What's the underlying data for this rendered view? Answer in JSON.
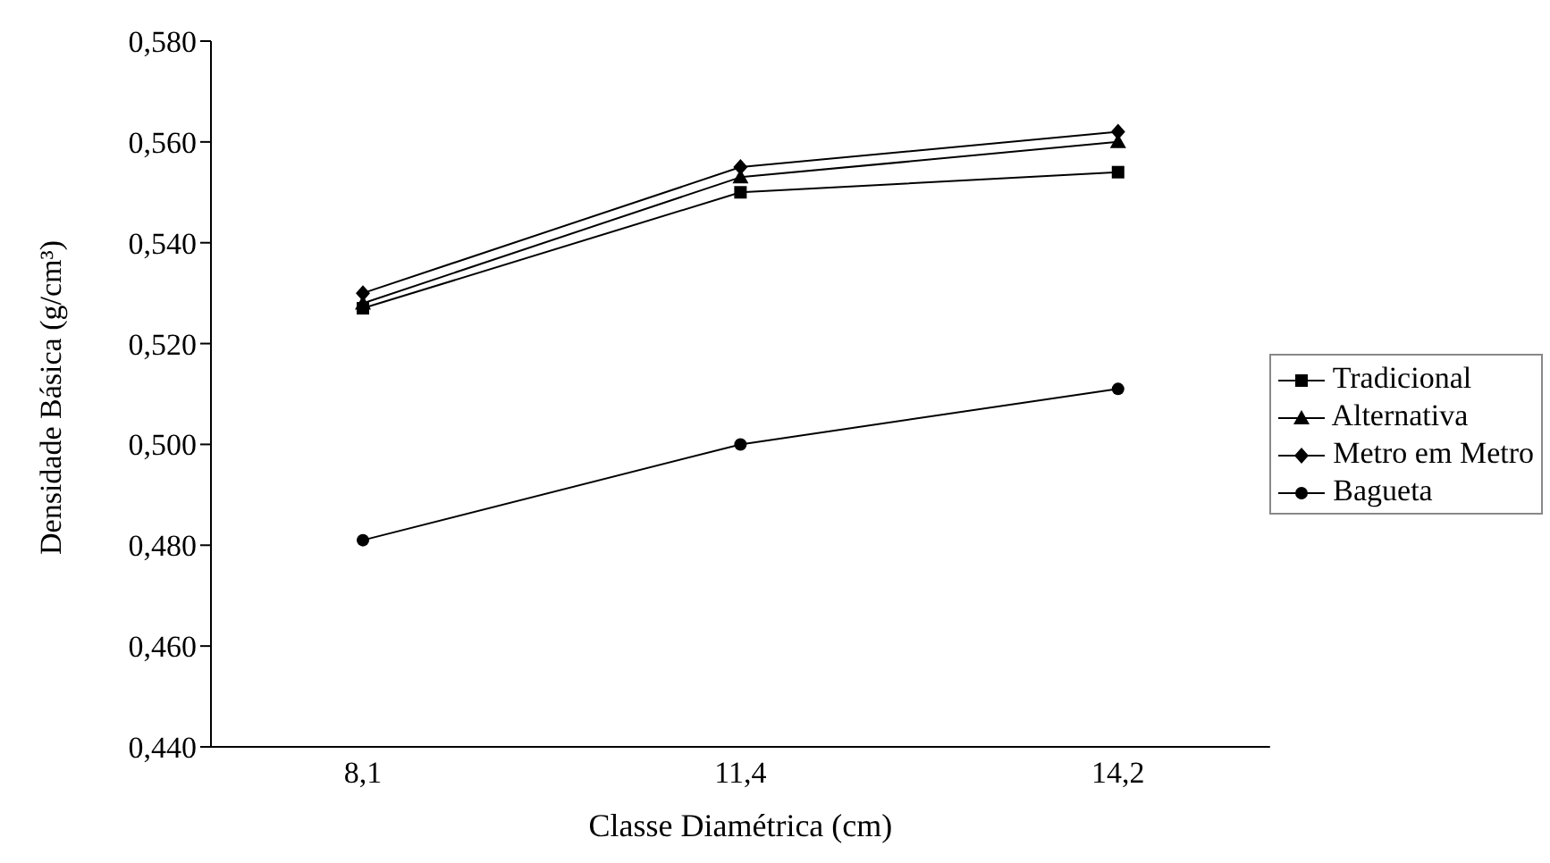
{
  "chart_data": {
    "type": "line",
    "xlabel": "Classe Diamétrica (cm)",
    "ylabel": "Densidade Básica (g/cm³)",
    "categories": [
      "8,1",
      "11,4",
      "14,2"
    ],
    "ylim": [
      0.44,
      0.58
    ],
    "yticks": [
      {
        "value": 0.44,
        "label": "0,440"
      },
      {
        "value": 0.46,
        "label": "0,460"
      },
      {
        "value": 0.48,
        "label": "0,480"
      },
      {
        "value": 0.5,
        "label": "0,500"
      },
      {
        "value": 0.52,
        "label": "0,520"
      },
      {
        "value": 0.54,
        "label": "0,540"
      },
      {
        "value": 0.56,
        "label": "0,560"
      },
      {
        "value": 0.58,
        "label": "0,580"
      }
    ],
    "grid": false,
    "legend": "right",
    "line_style": "solid",
    "series": [
      {
        "name": "Tradicional",
        "color": "#000000",
        "marker": "square",
        "values": [
          0.527,
          0.55,
          0.554
        ]
      },
      {
        "name": "Alternativa",
        "color": "#000000",
        "marker": "triangle",
        "values": [
          0.528,
          0.553,
          0.56
        ]
      },
      {
        "name": "Metro em Metro",
        "color": "#000000",
        "marker": "diamond",
        "values": [
          0.53,
          0.555,
          0.562
        ]
      },
      {
        "name": "Bagueta",
        "color": "#000000",
        "marker": "circle",
        "values": [
          0.481,
          0.5,
          0.511
        ]
      }
    ]
  }
}
